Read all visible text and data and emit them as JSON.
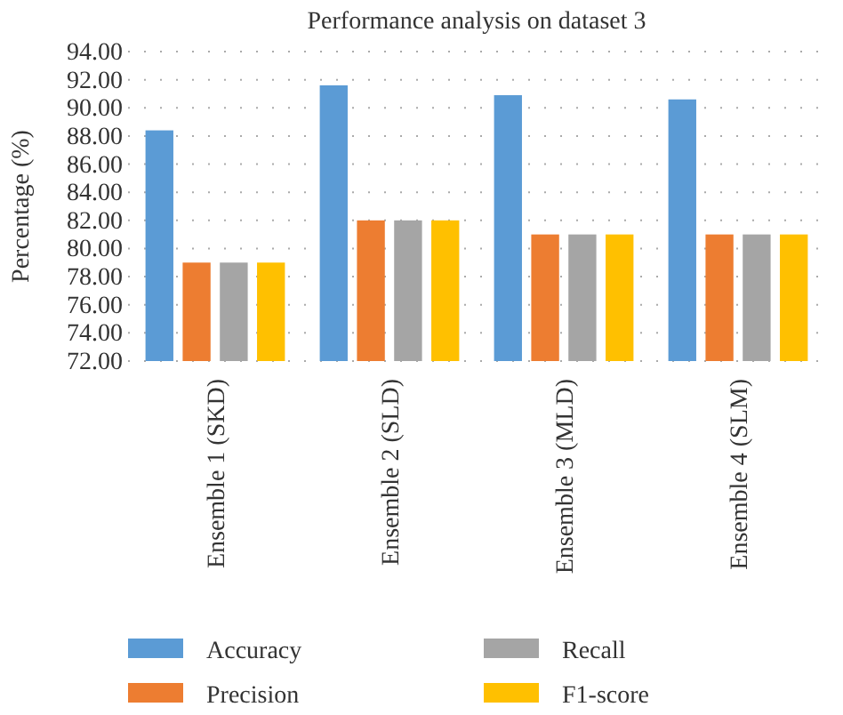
{
  "chart_data": {
    "type": "bar",
    "title": "Performance analysis on dataset 3",
    "ylabel": "Percentage (%)",
    "categories": [
      "Ensemble 1 (SKD)",
      "Ensemble 2 (SLD)",
      "Ensemble 3 (MLD)",
      "Ensemble 4 (SLM)"
    ],
    "series": [
      {
        "name": "Accuracy",
        "color": "#5b9bd5",
        "values": [
          88.4,
          91.6,
          90.9,
          90.6
        ]
      },
      {
        "name": "Precision",
        "color": "#ed7d31",
        "values": [
          79,
          82,
          81,
          81
        ]
      },
      {
        "name": "Recall",
        "color": "#a5a5a5",
        "values": [
          79,
          82,
          81,
          81
        ]
      },
      {
        "name": "F1-score",
        "color": "#ffc000",
        "values": [
          79,
          82,
          81,
          81
        ]
      }
    ],
    "ylim": [
      72,
      94
    ],
    "yticks": [
      {
        "value": 72,
        "label": "72.00"
      },
      {
        "value": 74,
        "label": "74.00"
      },
      {
        "value": 76,
        "label": "76.00"
      },
      {
        "value": 78,
        "label": "78.00"
      },
      {
        "value": 80,
        "label": "80.00"
      },
      {
        "value": 82,
        "label": "82.00"
      },
      {
        "value": 84,
        "label": "84.00"
      },
      {
        "value": 86,
        "label": "86.00"
      },
      {
        "value": 88,
        "label": "88.00"
      },
      {
        "value": 90,
        "label": "90.00"
      },
      {
        "value": 92,
        "label": "92.00"
      },
      {
        "value": 94,
        "label": "94.00"
      }
    ],
    "grid": "y",
    "legend": "bottom"
  }
}
